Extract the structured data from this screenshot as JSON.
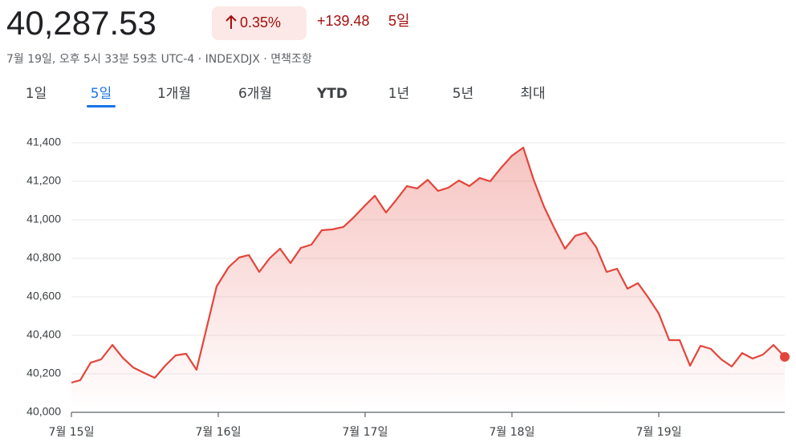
{
  "header": {
    "price": "40,287.53",
    "percent_change": "0.35%",
    "change": "+139.48",
    "period": "5일",
    "subtitle": "7월 19일, 오후 5시 33분 59초 UTC-4 · INDEXDJX · 면책조항"
  },
  "tabs": [
    "1일",
    "5일",
    "1개월",
    "6개월",
    "YTD",
    "1년",
    "5년",
    "최대"
  ],
  "selected_tab": 1,
  "chart_data": {
    "type": "area",
    "color": "#e3453b",
    "x": [
      0,
      0.06,
      0.131,
      0.202,
      0.279,
      0.35,
      0.421,
      0.497,
      0.568,
      0.639,
      0.71,
      0.781,
      0.852,
      0.989,
      1.071,
      1.142,
      1.208,
      1.279,
      1.35,
      1.421,
      1.492,
      1.563,
      1.634,
      1.705,
      1.776,
      1.852,
      1.923,
      1.995,
      2.066,
      2.142,
      2.213,
      2.284,
      2.355,
      2.426,
      2.497,
      2.568,
      2.639,
      2.71,
      2.781,
      2.852,
      2.923,
      3.0,
      3.077,
      3.148,
      3.219,
      3.29,
      3.361,
      3.432,
      3.503,
      3.574,
      3.645,
      3.716,
      3.787,
      3.858,
      3.929,
      4.0,
      4.071,
      4.142,
      4.213,
      4.284,
      4.355,
      4.426,
      4.497,
      4.568,
      4.639,
      4.71,
      4.781,
      4.858
    ],
    "values": [
      40154,
      40167,
      40258,
      40275,
      40350,
      40283,
      40233,
      40204,
      40179,
      40242,
      40296,
      40304,
      40221,
      40654,
      40754,
      40804,
      40817,
      40729,
      40800,
      40850,
      40775,
      40854,
      40871,
      40946,
      40950,
      40963,
      41013,
      41071,
      41125,
      41038,
      41104,
      41175,
      41163,
      41208,
      41150,
      41167,
      41204,
      41175,
      41217,
      41200,
      41267,
      41333,
      41375,
      41208,
      41067,
      40954,
      40850,
      40917,
      40933,
      40858,
      40729,
      40746,
      40642,
      40671,
      40596,
      40513,
      40375,
      40375,
      40242,
      40346,
      40329,
      40275,
      40238,
      40308,
      40279,
      40300,
      40350,
      40288
    ],
    "xlim": [
      0,
      4.858
    ],
    "xticks": [
      {
        "value": 0,
        "label": "7월 15일"
      },
      {
        "value": 1,
        "label": "7월 16일"
      },
      {
        "value": 2,
        "label": "7월 17일"
      },
      {
        "value": 3,
        "label": "7월 18일"
      },
      {
        "value": 4,
        "label": "7월 19일"
      }
    ],
    "ylim": [
      40000,
      41400
    ],
    "yticks": [
      {
        "value": 40000,
        "label": "40,000"
      },
      {
        "value": 40200,
        "label": "40,200"
      },
      {
        "value": 40400,
        "label": "40,400"
      },
      {
        "value": 40600,
        "label": "40,600"
      },
      {
        "value": 40800,
        "label": "40,800"
      },
      {
        "value": 41000,
        "label": "41,000"
      },
      {
        "value": 41200,
        "label": "41,200"
      },
      {
        "value": 41400,
        "label": "41,400"
      }
    ],
    "grid": true
  }
}
